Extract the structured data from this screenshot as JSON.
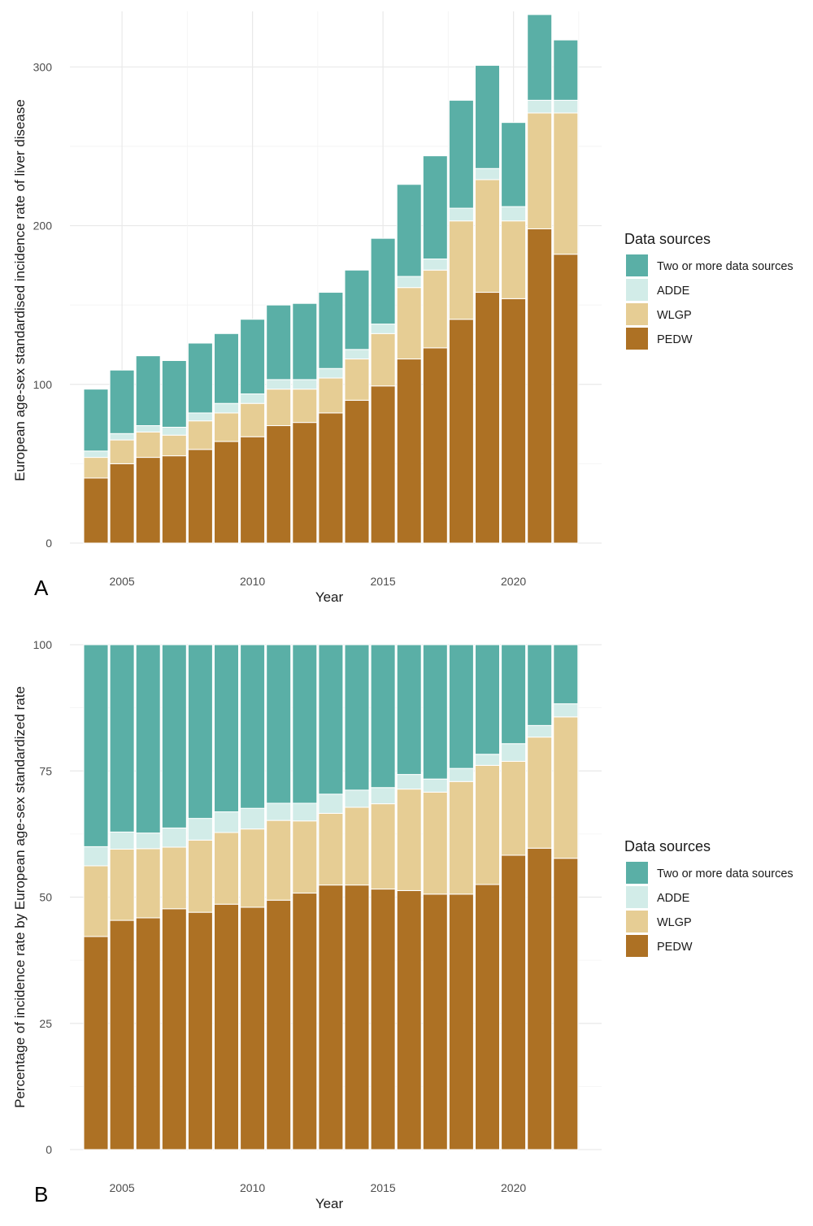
{
  "colors": {
    "Two or more data sources": "#5aafa6",
    "ADDE": "#d2ece8",
    "WLGP": "#e6cd94",
    "PEDW": "#ad7124",
    "grid_major": "#e9e9e9",
    "grid_minor": "#f3f3f3",
    "bar_border": "#ffffff"
  },
  "chart_data": [
    {
      "type": "bar",
      "stacked": true,
      "panel_label": "A",
      "xlabel": "Year",
      "ylabel": "European age-sex standardised incidence rate of liver disease",
      "x": [
        2004,
        2005,
        2006,
        2007,
        2008,
        2009,
        2010,
        2011,
        2012,
        2013,
        2014,
        2015,
        2016,
        2017,
        2018,
        2019,
        2020,
        2021,
        2022
      ],
      "x_ticks": [
        "2005",
        "2010",
        "2015",
        "2020"
      ],
      "y_ticks": [
        "0",
        "100",
        "200",
        "300"
      ],
      "ylim": [
        0,
        335
      ],
      "grid": true,
      "legend_title": "Data sources",
      "legend_position": "right",
      "legend_items": [
        "Two or more data sources",
        "ADDE",
        "WLGP",
        "PEDW"
      ],
      "series": [
        {
          "name": "PEDW",
          "values": [
            41,
            50,
            54,
            55,
            59,
            64,
            67,
            74,
            76,
            82,
            90,
            99,
            116,
            123,
            141,
            158,
            154,
            198,
            182
          ]
        },
        {
          "name": "WLGP",
          "values": [
            13,
            15,
            16,
            13,
            18,
            18,
            21,
            23,
            21,
            22,
            26,
            33,
            45,
            49,
            62,
            71,
            49,
            73,
            89
          ]
        },
        {
          "name": "ADDE",
          "values": [
            4,
            4,
            4,
            5,
            5,
            6,
            6,
            6,
            6,
            6,
            6,
            6,
            7,
            7,
            8,
            7,
            9,
            8,
            8
          ]
        },
        {
          "name": "Two or more data sources",
          "values": [
            39,
            40,
            44,
            42,
            44,
            44,
            47,
            47,
            48,
            48,
            50,
            54,
            58,
            65,
            68,
            65,
            53,
            54,
            38
          ]
        }
      ]
    },
    {
      "type": "bar",
      "stacked": true,
      "panel_label": "B",
      "xlabel": "Year",
      "ylabel": "Percentage of incidence rate by European age-sex standardized rate",
      "x": [
        2004,
        2005,
        2006,
        2007,
        2008,
        2009,
        2010,
        2011,
        2012,
        2013,
        2014,
        2015,
        2016,
        2017,
        2018,
        2019,
        2020,
        2021,
        2022
      ],
      "x_ticks": [
        "2005",
        "2010",
        "2015",
        "2020"
      ],
      "y_ticks": [
        "0",
        "25",
        "50",
        "75",
        "100"
      ],
      "ylim": [
        0,
        100
      ],
      "grid": true,
      "legend_title": "Data sources",
      "legend_position": "right",
      "legend_items": [
        "Two or more data sources",
        "ADDE",
        "WLGP",
        "PEDW"
      ],
      "series": [
        {
          "name": "PEDW",
          "values": [
            42.2,
            45.4,
            45.9,
            47.7,
            47.0,
            48.6,
            48.0,
            49.4,
            50.8,
            52.4,
            52.4,
            51.6,
            51.3,
            50.6,
            50.6,
            52.5,
            58.3,
            59.7,
            57.7
          ]
        },
        {
          "name": "WLGP",
          "values": [
            14.0,
            14.1,
            13.7,
            12.2,
            14.3,
            14.2,
            15.5,
            15.8,
            14.3,
            14.2,
            15.4,
            16.9,
            20.1,
            20.2,
            22.3,
            23.6,
            18.6,
            22.0,
            28.0
          ]
        },
        {
          "name": "ADDE",
          "values": [
            3.8,
            3.4,
            3.1,
            3.8,
            4.3,
            4.1,
            4.1,
            3.4,
            3.5,
            3.8,
            3.4,
            3.2,
            2.9,
            2.6,
            2.6,
            2.2,
            3.5,
            2.3,
            2.6
          ]
        },
        {
          "name": "Two or more data sources",
          "values": [
            40.0,
            37.1,
            37.3,
            36.3,
            34.4,
            33.1,
            32.4,
            31.4,
            31.4,
            29.6,
            28.8,
            28.3,
            25.7,
            26.6,
            24.5,
            21.7,
            19.6,
            16.0,
            11.7
          ]
        }
      ]
    }
  ]
}
